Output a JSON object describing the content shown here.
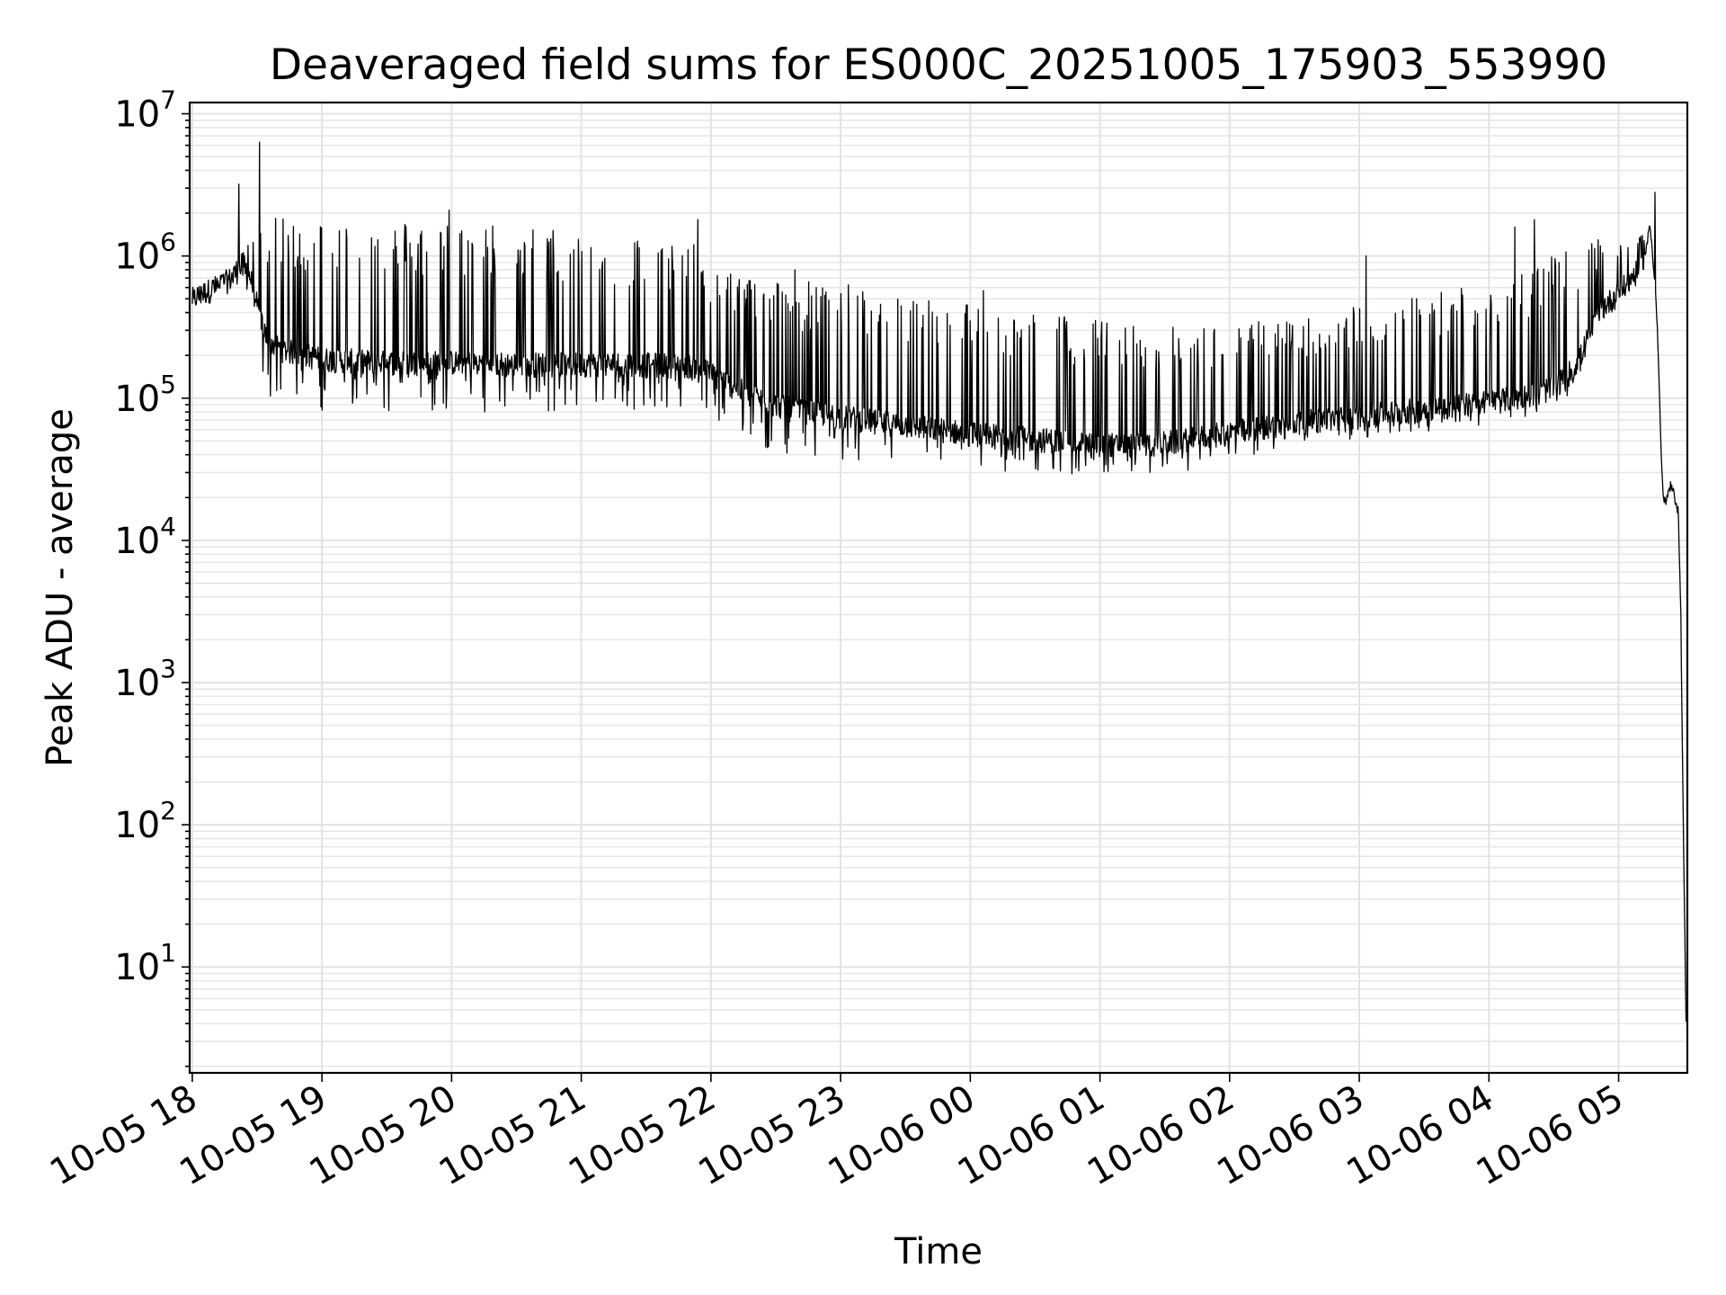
{
  "chart_data": {
    "type": "line",
    "title": "Deaveraged field sums for ES000C_20251005_175903_553990",
    "xlabel": "Time",
    "ylabel": "Peak ADU - average",
    "yscale": "log",
    "ylim": [
      1.8,
      12000000
    ],
    "xlim_hours": [
      -0.02,
      11.53
    ],
    "x_origin": "10-05 18:00",
    "grid": "on",
    "x_ticks": [
      {
        "h": 0,
        "label": "10-05 18"
      },
      {
        "h": 1,
        "label": "10-05 19"
      },
      {
        "h": 2,
        "label": "10-05 20"
      },
      {
        "h": 3,
        "label": "10-05 21"
      },
      {
        "h": 4,
        "label": "10-05 22"
      },
      {
        "h": 5,
        "label": "10-05 23"
      },
      {
        "h": 6,
        "label": "10-06 00"
      },
      {
        "h": 7,
        "label": "10-06 01"
      },
      {
        "h": 8,
        "label": "10-06 02"
      },
      {
        "h": 9,
        "label": "10-06 03"
      },
      {
        "h": 10,
        "label": "10-06 04"
      },
      {
        "h": 11,
        "label": "10-06 05"
      }
    ],
    "y_ticks": [
      {
        "exp": 1,
        "base": "10",
        "sup": "1"
      },
      {
        "exp": 2,
        "base": "10",
        "sup": "2"
      },
      {
        "exp": 3,
        "base": "10",
        "sup": "3"
      },
      {
        "exp": 4,
        "base": "10",
        "sup": "4"
      },
      {
        "exp": 5,
        "base": "10",
        "sup": "5"
      },
      {
        "exp": 6,
        "base": "10",
        "sup": "6"
      },
      {
        "exp": 7,
        "base": "10",
        "sup": "7"
      }
    ],
    "series": [
      {
        "name": "deaveraged field sum",
        "color": "#000000",
        "x_hours": [
          0.0,
          0.1,
          0.2,
          0.3,
          0.35,
          0.4,
          0.45,
          0.5,
          0.52,
          0.55,
          0.6,
          0.7,
          0.8,
          0.9,
          1.0,
          1.5,
          2.0,
          2.5,
          3.0,
          3.5,
          3.9,
          4.0,
          4.3,
          4.6,
          5.0,
          5.5,
          6.0,
          6.5,
          7.0,
          7.3,
          7.6,
          8.0,
          8.5,
          9.0,
          9.5,
          10.0,
          10.3,
          10.5,
          10.6,
          10.7,
          10.75,
          10.8,
          10.83,
          10.86,
          10.9,
          10.95,
          11.0,
          11.05,
          11.1,
          11.15,
          11.2,
          11.22,
          11.24,
          11.26,
          11.28,
          11.3,
          11.32,
          11.34,
          11.36,
          11.38,
          11.4,
          11.42,
          11.44,
          11.46,
          11.48,
          11.5,
          11.52
        ],
        "base": [
          500000,
          560000,
          620000,
          700000,
          800000,
          900000,
          700000,
          450000,
          380000,
          300000,
          250000,
          220000,
          210000,
          200000,
          190000,
          180000,
          180000,
          175000,
          175000,
          175000,
          170000,
          150000,
          105000,
          85000,
          75000,
          65000,
          57000,
          52000,
          48000,
          47000,
          50000,
          58000,
          68000,
          75000,
          85000,
          95000,
          105000,
          120000,
          145000,
          190000,
          250000,
          320000,
          380000,
          420000,
          460000,
          500000,
          560000,
          620000,
          700000,
          800000,
          1000000,
          1200000,
          1700000,
          1100000,
          650000,
          300000,
          70000,
          22000,
          18000,
          21000,
          24000,
          22000,
          19000,
          16000,
          3000,
          80,
          4
        ],
        "upper": [
          600000,
          650000,
          720000,
          800000,
          950000,
          1100000,
          1500000,
          1700000,
          1800000,
          1800000,
          1850000,
          1850000,
          1850000,
          1850000,
          1850000,
          1800000,
          1800000,
          1700000,
          1500000,
          1400000,
          1200000,
          900000,
          750000,
          700000,
          650000,
          550000,
          480000,
          420000,
          360000,
          330000,
          320000,
          330000,
          380000,
          450000,
          560000,
          700000,
          850000,
          1000000,
          1100000,
          1200000,
          1250000,
          1300000,
          1300000,
          1300000,
          1300000,
          1300000,
          1300000,
          1300000,
          1300000,
          1300000,
          1500000,
          1600000,
          2000000,
          1300000,
          800000,
          350000,
          80000,
          24000,
          21000,
          23000,
          25000,
          24000,
          21000,
          18000,
          3500,
          100,
          5
        ],
        "lower": [
          450000,
          480000,
          540000,
          600000,
          650000,
          700000,
          400000,
          260000,
          200000,
          130000,
          100000,
          90000,
          85000,
          82000,
          82000,
          80000,
          80000,
          80000,
          80000,
          80000,
          80000,
          60000,
          45000,
          38000,
          35000,
          32000,
          30000,
          29000,
          28000,
          27000,
          30000,
          36000,
          45000,
          52000,
          58000,
          65000,
          75000,
          85000,
          100000,
          140000,
          190000,
          260000,
          320000,
          360000,
          400000,
          440000,
          500000,
          560000,
          620000,
          700000,
          850000,
          1000000,
          1400000,
          900000,
          500000,
          230000,
          50000,
          16000,
          15000,
          18000,
          21000,
          19000,
          16000,
          14000,
          2500,
          60,
          3.5
        ],
        "peaks": [
          {
            "h": 0.36,
            "v": 3200000
          },
          {
            "h": 0.52,
            "v": 6300000
          },
          {
            "h": 1.98,
            "v": 2100000
          },
          {
            "h": 3.9,
            "v": 1800000
          },
          {
            "h": 4.65,
            "v": 800000
          },
          {
            "h": 6.1,
            "v": 570000
          },
          {
            "h": 9.05,
            "v": 1000000
          },
          {
            "h": 10.2,
            "v": 1600000
          },
          {
            "h": 10.35,
            "v": 1800000
          },
          {
            "h": 11.28,
            "v": 2800000
          }
        ]
      }
    ]
  }
}
